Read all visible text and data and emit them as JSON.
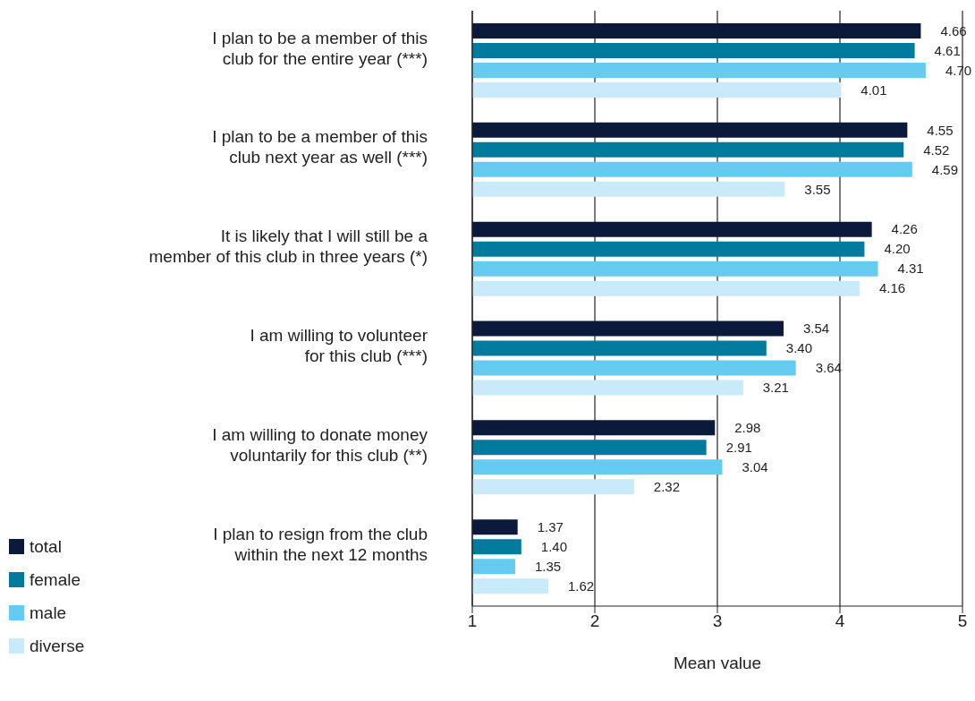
{
  "chart_data": {
    "type": "bar",
    "orientation": "horizontal",
    "xlabel": "Mean value",
    "categories": [
      "I plan to be a member of this\nclub for the entire year (***)",
      "I plan to be a member of this\nclub next year as well (***)",
      "It is likely that I will still be a\nmember of this club in three years (*)",
      "I am willing to volunteer\nfor this club (***)",
      "I am willing to donate money\nvoluntarily for this club (**)",
      "I plan to resign from the club\nwithin the next 12 months"
    ],
    "series": [
      {
        "name": "total",
        "color": "#0b1a3b",
        "values": [
          4.66,
          4.55,
          4.26,
          3.54,
          2.98,
          1.37
        ],
        "value_labels": [
          "4.66",
          "4.55",
          "4.26",
          "3.54",
          "2.98",
          "1.37"
        ]
      },
      {
        "name": "female",
        "color": "#007b9e",
        "values": [
          4.61,
          4.52,
          4.2,
          3.4,
          2.91,
          1.4
        ],
        "value_labels": [
          "4.61",
          "4.52",
          "4.20",
          "3.40",
          "2.91",
          "1.40"
        ]
      },
      {
        "name": "male",
        "color": "#66cbf0",
        "values": [
          4.7,
          4.59,
          4.31,
          3.64,
          3.04,
          1.35
        ],
        "value_labels": [
          "4.70",
          "4.59",
          "4.31",
          "3.64",
          "3.04",
          "1.35"
        ]
      },
      {
        "name": "diverse",
        "color": "#c9eaf8",
        "values": [
          4.01,
          3.55,
          4.16,
          3.21,
          2.32,
          1.62
        ],
        "value_labels": [
          "4.01",
          "3.55",
          "4.16",
          "3.21",
          "2.32",
          "1.62"
        ]
      }
    ],
    "xlim": [
      1,
      5
    ],
    "xticks": [
      1,
      2,
      3,
      4,
      5
    ],
    "grid": "x",
    "legend": "bottom left"
  }
}
